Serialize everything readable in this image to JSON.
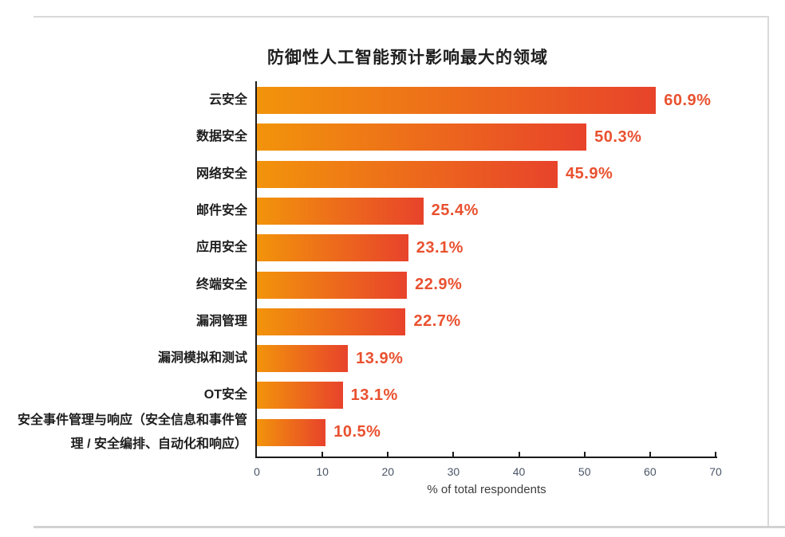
{
  "chart_data": {
    "type": "bar",
    "orientation": "horizontal",
    "title": "防御性人工智能预计影响最大的领域",
    "categories": [
      "云安全",
      "数据安全",
      "网络安全",
      "邮件安全",
      "应用安全",
      "终端安全",
      "漏洞管理",
      "漏洞模拟和测试",
      "OT安全",
      "安全事件管理与响应（安全信息和事件管理 / 安全编排、自动化和响应）"
    ],
    "values": [
      60.9,
      50.3,
      45.9,
      25.4,
      23.1,
      22.9,
      22.7,
      13.9,
      13.1,
      10.5
    ],
    "value_labels": [
      "60.9%",
      "50.3%",
      "45.9%",
      "25.4%",
      "23.1%",
      "22.9%",
      "22.7%",
      "13.9%",
      "13.1%",
      "10.5%"
    ],
    "xlabel": "% of total respondents",
    "xlim": [
      0,
      70
    ],
    "xticks": [
      0,
      10,
      20,
      30,
      40,
      50,
      60,
      70
    ],
    "legend": null,
    "grid": false,
    "colors": {
      "bar_gradient_start": "#F2940B",
      "bar_gradient_end": "#E8432B",
      "value_label": "#E9512F",
      "axis": "#1a1a1a",
      "tick_label": "#4a5568",
      "category_label": "#1d1d1d",
      "frame_border": "#d9d9d9"
    }
  }
}
